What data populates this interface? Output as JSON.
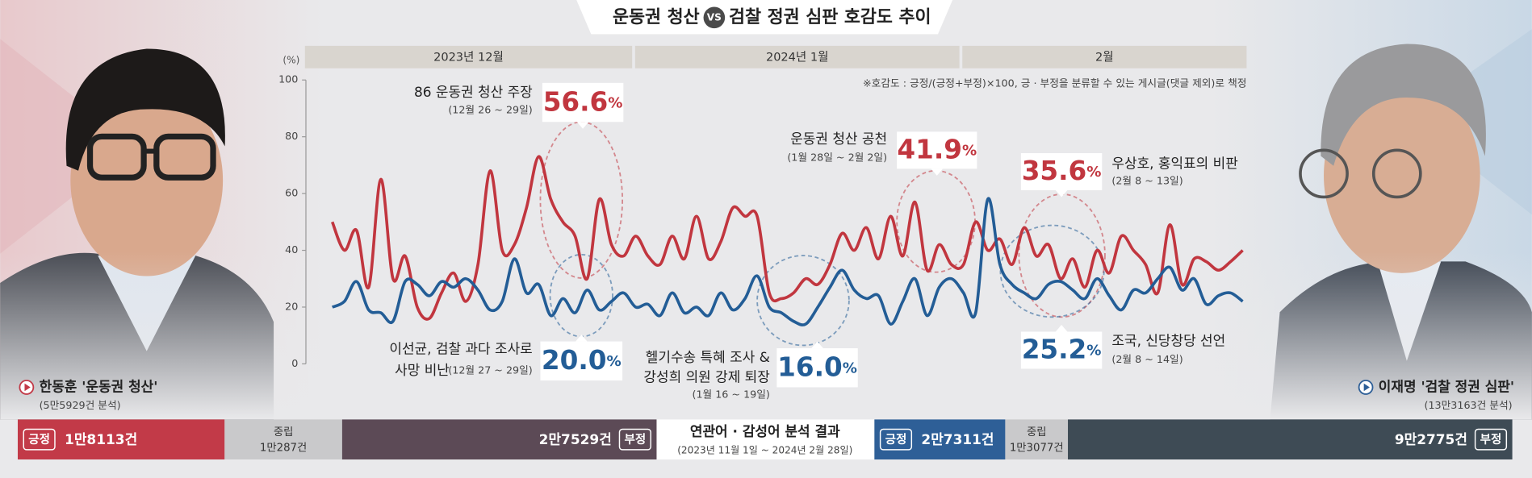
{
  "header": {
    "title_left": "운동권 청산",
    "vs": "VS",
    "title_right": "검찰 정권 심판 호감도 추이"
  },
  "chart_data": {
    "type": "line",
    "y_label": "(%)",
    "periods": [
      "2023년 12월",
      "2024년 1월",
      "2월"
    ],
    "note": "※호감도 : 긍정/(긍정+부정)×100, 긍 · 부정을 분류할 수 있는 게시글(댓글 제외)로 책정",
    "ylim": [
      0,
      100
    ],
    "yticks": [
      0,
      20,
      40,
      60,
      80,
      100
    ],
    "grid": false,
    "series": [
      {
        "color": "#c1363f",
        "values": [
          50,
          40,
          47,
          27,
          65,
          30,
          38,
          20,
          16,
          25,
          32,
          22,
          35,
          68,
          40,
          42,
          55,
          73,
          58,
          50,
          45,
          30,
          58,
          42,
          38,
          45,
          38,
          35,
          45,
          37,
          52,
          37,
          43,
          55,
          52,
          52,
          25,
          23,
          25,
          30,
          28,
          35,
          46,
          40,
          48,
          37,
          52,
          38,
          57,
          33,
          42,
          35,
          35,
          50,
          40,
          44,
          35,
          48,
          38,
          42,
          30,
          37,
          27,
          40,
          32,
          45,
          40,
          35,
          25,
          49,
          28,
          37,
          36,
          33,
          36,
          40
        ]
      },
      {
        "color": "#235d96",
        "values": [
          20,
          22,
          29,
          19,
          18,
          15,
          29,
          28,
          24,
          29,
          27,
          30,
          26,
          19,
          22,
          37,
          25,
          28,
          17,
          23,
          18,
          26,
          19,
          22,
          25,
          20,
          21,
          17,
          25,
          18,
          20,
          17,
          25,
          19,
          23,
          31,
          20,
          18,
          15,
          14,
          20,
          27,
          33,
          26,
          23,
          24,
          14,
          22,
          30,
          17,
          27,
          30,
          25,
          18,
          58,
          35,
          28,
          25,
          23,
          28,
          29,
          26,
          23,
          30,
          24,
          19,
          26,
          25,
          30,
          34,
          26,
          30,
          21,
          24,
          25,
          22
        ]
      }
    ],
    "annotations": [
      {
        "lines": [
          "86 운동권 청산 주장"
        ],
        "date": "(12월 26 ~ 29일)",
        "value": 56.6,
        "unit": "%",
        "color": "#c1363f"
      },
      {
        "lines": [
          "운동권 청산 공천"
        ],
        "date": "(1월 28일 ~ 2월 2일)",
        "value": 41.9,
        "unit": "%",
        "color": "#c1363f"
      },
      {
        "lines": [
          "우상호, 홍익표의 비판"
        ],
        "date": "(2월 8 ~ 13일)",
        "value": 35.6,
        "unit": "%",
        "color": "#c1363f"
      },
      {
        "lines": [
          "이선균, 검찰 과다 조사로",
          "사망 비난"
        ],
        "date": "(12월 27 ~ 29일)",
        "value": {
          "value": 20,
          "label": "20.0"
        },
        "unit": "%",
        "color": "#235d96"
      },
      {
        "lines": [
          "헬기수송 특혜 조사 &",
          "강성희 의원 강제 퇴장"
        ],
        "date": "(1월 16 ~ 19일)",
        "value": {
          "value": 16,
          "label": "16.0"
        },
        "unit": "%",
        "color": "#235d96"
      },
      {
        "lines": [
          "조국, 신당창당 선언"
        ],
        "date": "(2월 8 ~ 14일)",
        "value": 25.2,
        "unit": "%",
        "color": "#235d96"
      }
    ]
  },
  "summary": {
    "title": "연관어 · 감성어 분석 결과",
    "period": "(2023년 11월 1일 ~ 2024년 2월 28일)",
    "groups": [
      {
        "name": "한동훈 '운동권 청산'",
        "analyzed": "(5만5929건 분석)",
        "positive": {
          "label": "긍정",
          "value": 18113,
          "value_label": "1만8113건",
          "color": "#c23a48"
        },
        "neutral": {
          "label": "중립",
          "value": 10287,
          "value_label": "1만287건",
          "color": "#c9c9cb"
        },
        "negative": {
          "label": "부정",
          "value": 27529,
          "value_label": "2만7529건",
          "color": "#5c4a56"
        }
      },
      {
        "name": "이재명 '검찰 정권 심판'",
        "analyzed": "(13만3163건 분석)",
        "positive": {
          "label": "긍정",
          "value": 27311,
          "value_label": "2만7311건",
          "color": "#2e5f97"
        },
        "neutral": {
          "label": "중립",
          "value": 13077,
          "value_label": "1만3077건",
          "color": "#c9c9cb"
        },
        "negative": {
          "label": "부정",
          "value": 92775,
          "value_label": "9만2775건",
          "color": "#3e4b55"
        }
      }
    ]
  }
}
